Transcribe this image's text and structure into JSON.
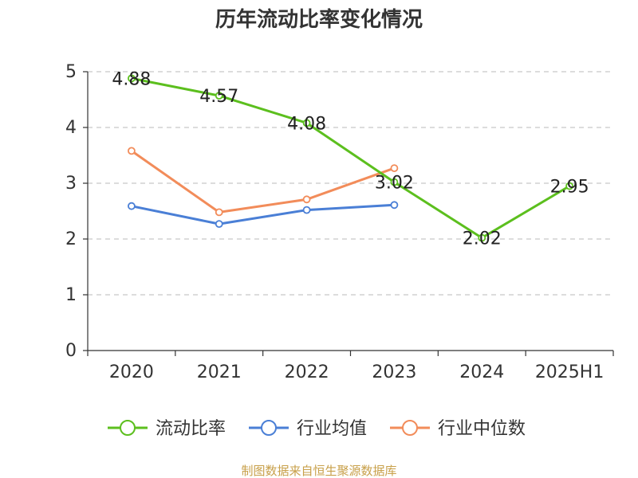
{
  "chart_data": {
    "type": "line",
    "title": "历年流动比率变化情况",
    "categories": [
      "2020",
      "2021",
      "2022",
      "2023",
      "2024",
      "2025H1"
    ],
    "ylim": [
      0,
      5
    ],
    "yticks": [
      "0",
      "1",
      "2",
      "3",
      "4",
      "5"
    ],
    "grid": true,
    "legend_position": "bottom",
    "series": [
      {
        "name": "流动比率",
        "color": "#5cbf1e",
        "values": [
          4.88,
          4.57,
          4.08,
          3.02,
          2.02,
          2.95
        ],
        "labels": [
          "4.88",
          "4.57",
          "4.08",
          "3.02",
          "2.02",
          "2.95"
        ]
      },
      {
        "name": "行业均值",
        "color": "#4a7fd6",
        "values": [
          2.59,
          2.27,
          2.52,
          2.61,
          null,
          null
        ]
      },
      {
        "name": "行业中位数",
        "color": "#f28c5a",
        "values": [
          3.58,
          2.48,
          2.71,
          3.27,
          null,
          null
        ]
      }
    ]
  },
  "source": "制图数据来自恒生聚源数据库"
}
